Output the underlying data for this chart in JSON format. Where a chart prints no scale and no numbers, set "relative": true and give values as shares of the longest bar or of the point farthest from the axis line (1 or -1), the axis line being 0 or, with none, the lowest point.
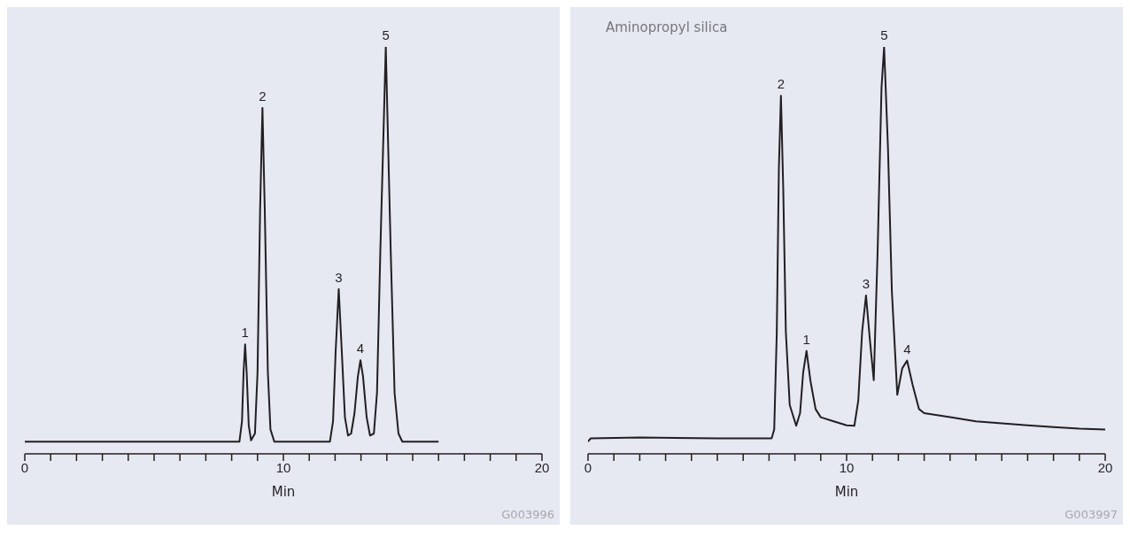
{
  "chart_data": [
    {
      "type": "line",
      "relative": true,
      "xlabel": "Min",
      "xlim": [
        0,
        20
      ],
      "xticks": [
        0,
        {
          "value": 1,
          "label": null
        },
        {
          "value": 2,
          "label": null
        },
        {
          "value": 3,
          "label": null
        },
        {
          "value": 4,
          "label": null
        },
        {
          "value": 5,
          "label": null
        },
        {
          "value": 6,
          "label": null
        },
        {
          "value": 7,
          "label": null
        },
        {
          "value": 8,
          "label": null
        },
        {
          "value": 9,
          "label": null
        },
        10,
        {
          "value": 11,
          "label": null
        },
        {
          "value": 12,
          "label": null
        },
        {
          "value": 13,
          "label": null
        },
        {
          "value": 14,
          "label": null
        },
        {
          "value": 15,
          "label": null
        },
        {
          "value": 16,
          "label": null
        },
        {
          "value": 17,
          "label": null
        },
        {
          "value": 18,
          "label": null
        },
        {
          "value": 19,
          "label": null
        },
        20
      ],
      "grid": false,
      "marker": "none",
      "line_style": "solid",
      "series": [
        {
          "color": "#231f20",
          "x": [
            0,
            8.3,
            8.4,
            8.46,
            8.52,
            8.58,
            8.66,
            8.75,
            8.9,
            9.0,
            9.1,
            9.19,
            9.28,
            9.4,
            9.5,
            9.65,
            11.8,
            11.92,
            12.02,
            12.14,
            12.26,
            12.38,
            12.5,
            12.62,
            12.75,
            12.88,
            12.98,
            13.08,
            13.22,
            13.35,
            13.5,
            13.62,
            13.75,
            13.96,
            14.15,
            14.3,
            14.45,
            14.6,
            16
          ],
          "values": [
            0.03,
            0.03,
            0.08,
            0.2,
            0.269,
            0.2,
            0.07,
            0.033,
            0.05,
            0.2,
            0.6,
            0.85,
            0.6,
            0.2,
            0.06,
            0.03,
            0.03,
            0.08,
            0.25,
            0.405,
            0.25,
            0.09,
            0.045,
            0.05,
            0.1,
            0.19,
            0.23,
            0.19,
            0.09,
            0.045,
            0.05,
            0.15,
            0.5,
            1,
            0.5,
            0.15,
            0.05,
            0.03,
            0.03
          ]
        }
      ],
      "annotations": [
        {
          "text": "1",
          "x": 8.52,
          "y": 0.269
        },
        {
          "text": "2",
          "x": 9.19,
          "y": 0.85
        },
        {
          "text": "3",
          "x": 12.14,
          "y": 0.405
        },
        {
          "text": "4",
          "x": 12.98,
          "y": 0.23
        },
        {
          "text": "5",
          "x": 13.96,
          "y": 1
        },
        "G003996"
      ]
    },
    {
      "type": "line",
      "relative": true,
      "title": "Aminopropyl silica",
      "xlabel": "Min",
      "xlim": [
        0,
        20
      ],
      "xticks": [
        0,
        {
          "value": 1,
          "label": null
        },
        {
          "value": 2,
          "label": null
        },
        {
          "value": 3,
          "label": null
        },
        {
          "value": 4,
          "label": null
        },
        {
          "value": 5,
          "label": null
        },
        {
          "value": 6,
          "label": null
        },
        {
          "value": 7,
          "label": null
        },
        {
          "value": 8,
          "label": null
        },
        {
          "value": 9,
          "label": null
        },
        10,
        {
          "value": 11,
          "label": null
        },
        {
          "value": 12,
          "label": null
        },
        {
          "value": 13,
          "label": null
        },
        {
          "value": 14,
          "label": null
        },
        {
          "value": 15,
          "label": null
        },
        {
          "value": 16,
          "label": null
        },
        {
          "value": 17,
          "label": null
        },
        {
          "value": 18,
          "label": null
        },
        {
          "value": 19,
          "label": null
        },
        20
      ],
      "grid": false,
      "marker": "none",
      "line_style": "solid",
      "series": [
        {
          "color": "#231f20",
          "x": [
            0,
            0.1,
            2,
            5,
            7.1,
            7.2,
            7.3,
            7.38,
            7.46,
            7.55,
            7.65,
            7.8,
            8.05,
            8.2,
            8.32,
            8.45,
            8.6,
            8.8,
            9.0,
            9.5,
            10.0,
            10.3,
            10.45,
            10.6,
            10.75,
            10.9,
            11.05,
            11.2,
            11.35,
            11.45,
            11.6,
            11.75,
            11.96,
            12.15,
            12.34,
            12.55,
            12.8,
            13.0,
            14,
            15,
            16,
            17,
            18,
            19,
            20
          ],
          "values": [
            0.03,
            0.038,
            0.04,
            0.038,
            0.038,
            0.06,
            0.3,
            0.7,
            0.88,
            0.65,
            0.3,
            0.12,
            0.069,
            0.1,
            0.2,
            0.253,
            0.18,
            0.11,
            0.09,
            0.08,
            0.07,
            0.069,
            0.13,
            0.3,
            0.389,
            0.28,
            0.181,
            0.5,
            0.9,
            1,
            0.75,
            0.4,
            0.145,
            0.21,
            0.229,
            0.17,
            0.11,
            0.1,
            0.09,
            0.08,
            0.075,
            0.07,
            0.066,
            0.062,
            0.06
          ]
        }
      ],
      "annotations": [
        {
          "text": "2",
          "x": 7.46,
          "y": 0.88
        },
        {
          "text": "1",
          "x": 8.45,
          "y": 0.253
        },
        {
          "text": "3",
          "x": 10.75,
          "y": 0.389
        },
        {
          "text": "5",
          "x": 11.45,
          "y": 1
        },
        {
          "text": "4",
          "x": 12.34,
          "y": 0.229
        },
        "G003997"
      ]
    }
  ]
}
